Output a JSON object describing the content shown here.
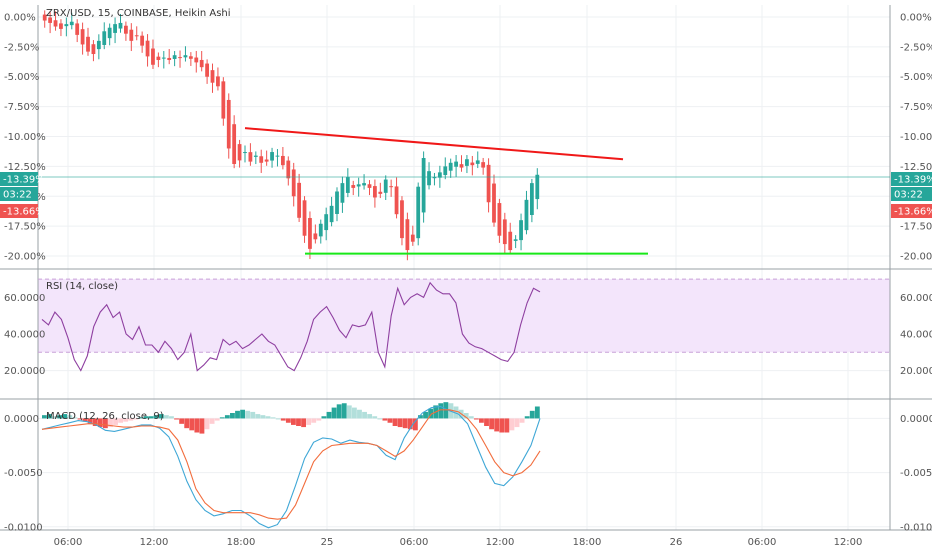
{
  "header": {
    "title": "ZRX/USD, 15, COINBASE, Heikin Ashi"
  },
  "price_axis": {
    "ticks": [
      "0.00%",
      "-2.50%",
      "-5.00%",
      "-7.50%",
      "-10.00%",
      "-12.50%",
      "-15.00%",
      "-17.50%",
      "-20.00%"
    ],
    "badge_current": "-13.39%",
    "badge_time": "03:22",
    "badge_low": "-13.66%"
  },
  "rsi": {
    "label": "RSI (14, close)",
    "ticks": [
      "60.0000",
      "40.0000",
      "20.0000"
    ]
  },
  "macd": {
    "label": "MACD (12, 26, close, 9)",
    "ticks": [
      "0.0000",
      "-0.0050",
      "-0.0100"
    ]
  },
  "time_axis": {
    "ticks": [
      "06:00",
      "12:00",
      "18:00",
      "25",
      "06:00",
      "12:00",
      "18:00",
      "26",
      "06:00",
      "12:00"
    ]
  },
  "colors": {
    "up": "#26a69a",
    "down": "#ef5350",
    "rsi_line": "#8e3fa0",
    "rsi_band": "#f3e5fb",
    "macd_line": "#3fa7d6",
    "signal_line": "#f26d3d",
    "hist_up_strong": "#26a69a",
    "hist_up_weak": "#b2dfdb",
    "hist_down_strong": "#ef5350",
    "hist_down_weak": "#ffcdd2",
    "resistance": "#f01818",
    "support": "#18e818",
    "current_line": "#26a69a"
  },
  "chart_data": [
    {
      "type": "candlestick",
      "title": "ZRX/USD, 15, COINBASE, Heikin Ashi",
      "unit": "%",
      "ylim": [
        -21,
        1
      ],
      "series": [
        {
          "values": [
            -0.3,
            -0.5,
            -0.8,
            -1.0,
            -0.6,
            -0.4,
            -1.5,
            -2.3,
            -2.9,
            -3.1,
            -2.0,
            -1.2,
            -0.9,
            -0.6,
            -0.5,
            -1.4,
            -2.0,
            -1.6,
            -2.4,
            -3.3,
            -4.0,
            -3.6,
            -3.4,
            -3.6,
            -3.2,
            -3.4,
            -3.2,
            -3.5,
            -3.8,
            -4.2,
            -5.0,
            -5.5,
            -5.8,
            -8.5,
            -11.0,
            -12.3,
            -12.0,
            -11.3,
            -12.1,
            -11.6,
            -12.2,
            -12.1,
            -11.3,
            -11.6,
            -12.4,
            -13.5,
            -15.0,
            -16.8,
            -18.3,
            -19.4,
            -18.6,
            -17.3,
            -16.5,
            -15.8,
            -14.6,
            -13.9,
            -13.4,
            -14.3,
            -14.0,
            -13.9,
            -14.3,
            -15.1,
            -14.8,
            -13.6,
            -14.2,
            -16.5,
            -18.5,
            -19.5,
            -18.8,
            -14.2,
            -11.8,
            -12.9,
            -13.4,
            -13.0,
            -12.5,
            -12.2,
            -12.1,
            -12.6,
            -11.9,
            -12.4,
            -12.0,
            -12.6,
            -15.5,
            -17.2,
            -18.3,
            -19.0,
            -19.5,
            -18.6,
            -17.0,
            -15.3,
            -13.9,
            -13.2
          ]
        }
      ],
      "annotations": [
        {
          "type": "trendline",
          "color": "resistance",
          "from": -9.3,
          "to": -11.9
        },
        {
          "type": "trendline",
          "color": "support",
          "from": -19.8,
          "to": -19.8
        }
      ]
    },
    {
      "type": "line",
      "title": "RSI (14, close)",
      "ylim": [
        5,
        75
      ],
      "band": [
        30,
        70
      ],
      "series": [
        {
          "name": "RSI",
          "values": [
            48,
            45,
            52,
            48,
            38,
            26,
            20,
            28,
            44,
            52,
            56,
            49,
            52,
            40,
            37,
            44,
            34,
            34,
            30,
            36,
            32,
            26,
            30,
            40,
            20,
            23,
            27,
            26,
            37,
            34,
            36,
            32,
            34,
            37,
            40,
            36,
            34,
            28,
            22,
            20,
            27,
            36,
            48,
            52,
            55,
            49,
            42,
            38,
            45,
            44,
            45,
            52,
            30,
            22,
            50,
            65,
            56,
            60,
            62,
            60,
            68,
            64,
            62,
            62,
            57,
            40,
            35,
            33,
            32,
            30,
            28,
            26,
            25,
            30,
            45,
            57,
            65,
            63
          ]
        }
      ]
    },
    {
      "type": "bar+line",
      "title": "MACD (12, 26, close, 9)",
      "ylim": [
        -0.0103,
        0.0017
      ],
      "series": [
        {
          "name": "MACD",
          "values": [
            -0.001,
            -0.0008,
            -0.0006,
            -0.0004,
            -0.0002,
            -0.0003,
            -0.0006,
            -0.0011,
            -0.0012,
            -0.001,
            -0.0008,
            -0.0006,
            -0.0006,
            -0.0009,
            -0.0017,
            -0.0035,
            -0.0058,
            -0.0075,
            -0.0085,
            -0.009,
            -0.0088,
            -0.0085,
            -0.0085,
            -0.009,
            -0.0097,
            -0.0101,
            -0.0098,
            -0.0085,
            -0.0062,
            -0.0037,
            -0.0022,
            -0.0018,
            -0.0019,
            -0.0023,
            -0.002,
            -0.0022,
            -0.0023,
            -0.0025,
            -0.0034,
            -0.0038,
            -0.0018,
            -0.0005,
            0.0005,
            0.001,
            0.0011,
            0.0007,
            0.0004,
            -0.0005,
            -0.0025,
            -0.0045,
            -0.006,
            -0.0062,
            -0.0054,
            -0.004,
            -0.0025,
            0.0
          ]
        },
        {
          "name": "Signal",
          "values": [
            -0.001,
            -0.0009,
            -0.0008,
            -0.0007,
            -0.0006,
            -0.0005,
            -0.0005,
            -0.0006,
            -0.0007,
            -0.0008,
            -0.0008,
            -0.0007,
            -0.0007,
            -0.0008,
            -0.001,
            -0.002,
            -0.004,
            -0.0065,
            -0.0078,
            -0.0085,
            -0.0087,
            -0.0087,
            -0.0087,
            -0.0087,
            -0.0089,
            -0.0092,
            -0.0093,
            -0.0092,
            -0.008,
            -0.006,
            -0.004,
            -0.003,
            -0.0025,
            -0.0024,
            -0.0023,
            -0.0023,
            -0.0023,
            -0.0025,
            -0.003,
            -0.0035,
            -0.003,
            -0.002,
            -0.0008,
            0.0004,
            0.0008,
            0.0008,
            0.0006,
            0.0,
            -0.001,
            -0.0025,
            -0.004,
            -0.005,
            -0.0053,
            -0.005,
            -0.0043,
            -0.003
          ]
        }
      ]
    }
  ],
  "x_categories_macd_hist": [
    0.0003,
    0.0004,
    0.0002,
    0.0003,
    0.0004,
    0.0003,
    0.0001,
    -0.0001,
    -0.0003,
    -0.0005,
    -0.0007,
    -0.0008,
    -0.0009,
    -0.0008,
    -0.0006,
    -0.0004,
    -0.0003,
    -0.0002,
    -0.0001,
    0.0001,
    0.0002,
    0.0002,
    0.0003,
    0.0004,
    0.0003,
    0.0002,
    -0.0001,
    -0.0005,
    -0.0009,
    -0.0011,
    -0.0013,
    -0.0014,
    -0.001,
    -0.0005,
    -0.0002,
    0.0001,
    0.0003,
    0.0005,
    0.0007,
    0.0008,
    0.0007,
    0.0006,
    0.0004,
    0.0003,
    0.0002,
    0.0001,
    0.0,
    -0.0002,
    -0.0004,
    -0.0006,
    -0.0007,
    -0.0008,
    -0.0006,
    -0.0004,
    -0.0002,
    0.0002,
    0.0006,
    0.001,
    0.0013,
    0.0014,
    0.0012,
    0.001,
    0.0008,
    0.0006,
    0.0004,
    0.0002,
    0.0,
    -0.0002,
    -0.0004,
    -0.0007,
    -0.0008,
    -0.0009,
    -0.001,
    -0.0011,
    0.0003,
    0.0006,
    0.0009,
    0.0012,
    0.0014,
    0.0015,
    0.0014,
    0.0011,
    0.0008,
    0.0005,
    0.0002,
    -0.0001,
    -0.0004,
    -0.0007,
    -0.001,
    -0.0012,
    -0.0013,
    -0.0013,
    -0.0011,
    -0.0008,
    -0.0004,
    0.0002,
    0.0007,
    0.0011
  ]
}
